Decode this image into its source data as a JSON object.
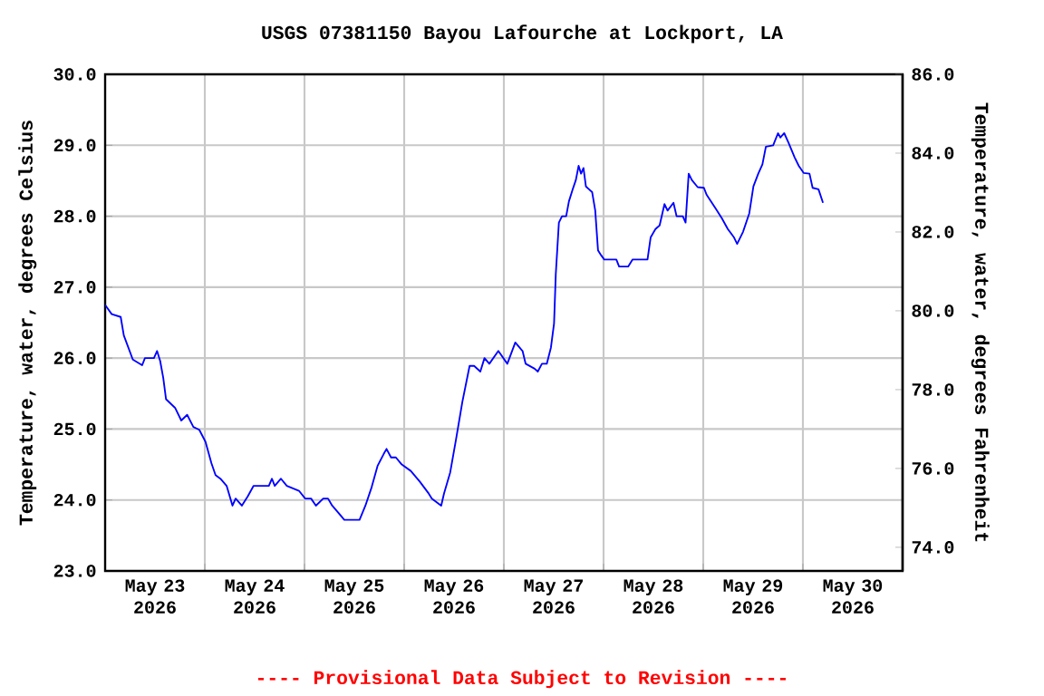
{
  "chart_data": {
    "type": "line",
    "title": "USGS 07381150 Bayou Lafourche at Lockport, LA",
    "ylabel": "Temperature, water, degrees Celsius",
    "y2label": "Temperature, water, degrees Fahrenheit",
    "annotations": [
      "---- Provisional Data Subject to Revision ----"
    ],
    "xlim": [
      "2026-05-23T00:00",
      "2026-05-31T00:00"
    ],
    "xticks": [
      {
        "value": "2026-05-23T12:00",
        "label": "May 23 2026"
      },
      {
        "value": "2026-05-24T12:00",
        "label": "May 24 2026"
      },
      {
        "value": "2026-05-25T12:00",
        "label": "May 25 2026"
      },
      {
        "value": "2026-05-26T12:00",
        "label": "May 26 2026"
      },
      {
        "value": "2026-05-27T12:00",
        "label": "May 27 2026"
      },
      {
        "value": "2026-05-28T12:00",
        "label": "May 28 2026"
      },
      {
        "value": "2026-05-29T12:00",
        "label": "May 29 2026"
      },
      {
        "value": "2026-05-30T12:00",
        "label": "May 30 2026"
      },
      {
        "value": "2026-05-24T00:00",
        "label": null
      },
      {
        "value": "2026-05-25T00:00",
        "label": null
      },
      {
        "value": "2026-05-26T00:00",
        "label": null
      },
      {
        "value": "2026-05-27T00:00",
        "label": null
      },
      {
        "value": "2026-05-28T00:00",
        "label": null
      },
      {
        "value": "2026-05-29T00:00",
        "label": null
      },
      {
        "value": "2026-05-30T00:00",
        "label": null
      }
    ],
    "ylim": [
      23,
      30
    ],
    "yticks": [
      {
        "value": 23,
        "label": "23.0"
      },
      {
        "value": 24,
        "label": "24.0"
      },
      {
        "value": 25,
        "label": "25.0"
      },
      {
        "value": 26,
        "label": "26.0"
      },
      {
        "value": 27,
        "label": "27.0"
      },
      {
        "value": 28,
        "label": "28.0"
      },
      {
        "value": 29,
        "label": "29.0"
      },
      {
        "value": 30,
        "label": "30.0"
      }
    ],
    "y2lim": [
      73.4,
      86
    ],
    "y2ticks": [
      {
        "value": 74,
        "label": "74.0"
      },
      {
        "value": 76,
        "label": "76.0"
      },
      {
        "value": 78,
        "label": "78.0"
      },
      {
        "value": 80,
        "label": "80.0"
      },
      {
        "value": 82,
        "label": "82.0"
      },
      {
        "value": 84,
        "label": "84.0"
      },
      {
        "value": 86,
        "label": "86.0"
      }
    ],
    "grid": true,
    "series": [
      {
        "color": "#0000ff",
        "x": [
          "2026-05-23T00:00",
          "2026-05-23T01:35",
          "2026-05-23T03:45",
          "2026-05-23T04:30",
          "2026-05-23T06:40",
          "2026-05-23T08:55",
          "2026-05-23T09:35",
          "2026-05-23T11:45",
          "2026-05-23T12:30",
          "2026-05-23T13:15",
          "2026-05-23T14:00",
          "2026-05-23T14:40",
          "2026-05-23T16:50",
          "2026-05-23T18:20",
          "2026-05-23T19:45",
          "2026-05-23T21:15",
          "2026-05-23T22:40",
          "2026-05-24T00:10",
          "2026-05-24T01:35",
          "2026-05-24T02:35",
          "2026-05-24T03:45",
          "2026-05-24T05:15",
          "2026-05-24T06:40",
          "2026-05-24T07:25",
          "2026-05-24T08:55",
          "2026-05-24T10:20",
          "2026-05-24T11:45",
          "2026-05-24T15:25",
          "2026-05-24T16:10",
          "2026-05-24T16:50",
          "2026-05-24T18:20",
          "2026-05-24T19:45",
          "2026-05-24T22:40",
          "2026-05-25T00:10",
          "2026-05-25T01:35",
          "2026-05-25T02:45",
          "2026-05-25T04:30",
          "2026-05-25T05:40",
          "2026-05-25T06:40",
          "2026-05-25T08:10",
          "2026-05-25T09:35",
          "2026-05-25T13:15",
          "2026-05-25T14:40",
          "2026-05-25T16:10",
          "2026-05-25T17:35",
          "2026-05-25T19:05",
          "2026-05-25T19:45",
          "2026-05-25T20:50",
          "2026-05-25T22:00",
          "2026-05-25T23:25",
          "2026-05-26T01:35",
          "2026-05-26T03:45",
          "2026-05-26T05:55",
          "2026-05-26T06:40",
          "2026-05-26T08:55",
          "2026-05-26T09:35",
          "2026-05-26T11:05",
          "2026-05-26T12:30",
          "2026-05-26T14:00",
          "2026-05-26T15:45",
          "2026-05-26T16:50",
          "2026-05-26T18:20",
          "2026-05-26T19:20",
          "2026-05-26T20:30",
          "2026-05-26T22:40",
          "2026-05-27T00:50",
          "2026-05-27T02:45",
          "2026-05-27T04:30",
          "2026-05-27T05:15",
          "2026-05-27T07:25",
          "2026-05-27T08:10",
          "2026-05-27T09:10",
          "2026-05-27T10:20",
          "2026-05-27T11:20",
          "2026-05-27T12:05",
          "2026-05-27T12:30",
          "2026-05-27T13:15",
          "2026-05-27T14:00",
          "2026-05-27T15:00",
          "2026-05-27T15:40",
          "2026-05-27T16:35",
          "2026-05-27T17:20",
          "2026-05-27T18:00",
          "2026-05-27T18:35",
          "2026-05-27T19:10",
          "2026-05-27T19:45",
          "2026-05-27T20:30",
          "2026-05-27T21:15",
          "2026-05-27T22:00",
          "2026-05-27T22:40",
          "2026-05-27T23:25",
          "2026-05-28T00:10",
          "2026-05-28T03:05",
          "2026-05-28T03:45",
          "2026-05-28T05:55",
          "2026-05-28T07:00",
          "2026-05-28T10:35",
          "2026-05-28T11:20",
          "2026-05-28T12:30",
          "2026-05-28T13:30",
          "2026-05-28T14:40",
          "2026-05-28T15:25",
          "2026-05-28T16:50",
          "2026-05-28T17:35",
          "2026-05-28T19:05",
          "2026-05-28T19:45",
          "2026-05-28T20:30",
          "2026-05-28T21:15",
          "2026-05-28T22:40",
          "2026-05-29T00:10",
          "2026-05-29T00:50",
          "2026-05-29T03:05",
          "2026-05-29T04:30",
          "2026-05-29T05:55",
          "2026-05-29T07:25",
          "2026-05-29T08:10",
          "2026-05-29T09:35",
          "2026-05-29T11:05",
          "2026-05-29T12:05",
          "2026-05-29T13:15",
          "2026-05-29T14:15",
          "2026-05-29T15:05",
          "2026-05-29T16:50",
          "2026-05-29T18:00",
          "2026-05-29T18:35",
          "2026-05-29T19:30",
          "2026-05-29T20:30",
          "2026-05-29T22:00",
          "2026-05-29T23:00",
          "2026-05-30T00:10",
          "2026-05-30T01:35",
          "2026-05-30T02:20",
          "2026-05-30T03:45",
          "2026-05-30T04:50"
        ],
        "values": [
          26.75,
          26.62,
          26.58,
          26.32,
          25.98,
          25.9,
          26.0,
          26.0,
          26.1,
          25.96,
          25.72,
          25.42,
          25.3,
          25.12,
          25.2,
          25.03,
          24.99,
          24.82,
          24.52,
          24.35,
          24.3,
          24.2,
          23.92,
          24.02,
          23.92,
          24.05,
          24.2,
          24.2,
          24.3,
          24.2,
          24.3,
          24.2,
          24.13,
          24.02,
          24.02,
          23.92,
          24.02,
          24.02,
          23.92,
          23.82,
          23.72,
          23.72,
          23.92,
          24.18,
          24.48,
          24.65,
          24.72,
          24.6,
          24.6,
          24.5,
          24.41,
          24.26,
          24.09,
          24.02,
          23.92,
          24.09,
          24.39,
          24.86,
          25.38,
          25.89,
          25.89,
          25.81,
          26.0,
          25.92,
          26.1,
          25.92,
          26.22,
          26.1,
          25.92,
          25.85,
          25.81,
          25.92,
          25.92,
          26.15,
          26.49,
          27.18,
          27.91,
          28.0,
          28.0,
          28.21,
          28.38,
          28.51,
          28.71,
          28.6,
          28.68,
          28.42,
          28.38,
          28.34,
          28.08,
          27.52,
          27.45,
          27.39,
          27.39,
          27.29,
          27.29,
          27.39,
          27.39,
          27.7,
          27.82,
          27.87,
          28.17,
          28.08,
          28.19,
          28.0,
          28.0,
          27.91,
          28.6,
          28.51,
          28.41,
          28.4,
          28.3,
          28.1,
          27.97,
          27.82,
          27.7,
          27.61,
          27.78,
          28.04,
          28.42,
          28.6,
          28.73,
          28.98,
          29.0,
          29.17,
          29.11,
          29.17,
          29.04,
          28.83,
          28.71,
          28.61,
          28.6,
          28.4,
          28.38,
          28.19
        ]
      }
    ]
  }
}
